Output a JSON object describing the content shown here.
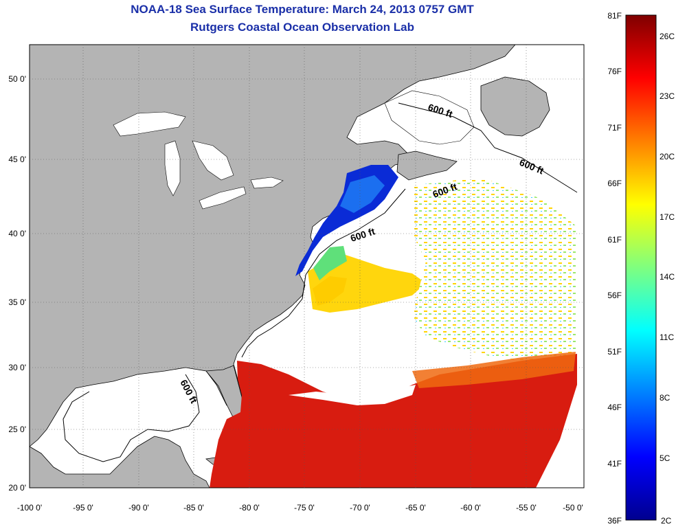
{
  "header": {
    "title": "NOAA-18 Sea Surface Temperature:  March 24, 2013 0757 GMT",
    "subtitle": "Rutgers Coastal Ocean Observation Lab"
  },
  "map": {
    "lon_labels": [
      "-100 0'",
      "-95 0'",
      "-90 0'",
      "-85 0'",
      "-80 0'",
      "-75 0'",
      "-70 0'",
      "-65 0'",
      "-60 0'",
      "-55 0'",
      "-50 0'"
    ],
    "lat_labels": [
      "50 0'",
      "45 0'",
      "40 0'",
      "35 0'",
      "30 0'",
      "25 0'",
      "20 0'"
    ],
    "isobath_labels": [
      "600 ft",
      "600 ft",
      "600 ft",
      "600 ft",
      "600 ft"
    ],
    "colors": {
      "land": "#b4b4b4",
      "cloud": "#ffffff",
      "cold": "#0a2bd6",
      "warm": "#d81c10"
    }
  },
  "colorbar": {
    "fahrenheit": [
      "81F",
      "76F",
      "71F",
      "66F",
      "61F",
      "56F",
      "51F",
      "46F",
      "41F",
      "36F"
    ],
    "celsius": [
      "26C",
      "23C",
      "20C",
      "17C",
      "14C",
      "11C",
      "8C",
      "5C",
      "2C"
    ]
  }
}
